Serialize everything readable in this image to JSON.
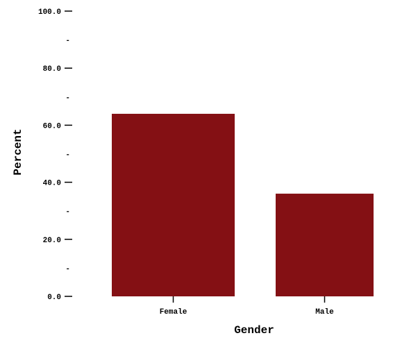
{
  "colors": {
    "bar": "#841014",
    "text": "#000000",
    "background": "#ffffff"
  },
  "chart_data": {
    "type": "bar",
    "title": "",
    "xlabel": "Gender",
    "ylabel": "Percent",
    "categories": [
      "Female",
      "Male"
    ],
    "values": [
      64,
      36
    ],
    "ylim": [
      0,
      100
    ],
    "yticks": [
      0,
      20,
      40,
      60,
      80,
      100
    ],
    "ytick_labels": [
      "0.0",
      "20.0",
      "40.0",
      "60.0",
      "80.0",
      "100.0"
    ],
    "minor_tick_labels": [
      "-",
      "-",
      "-",
      "-",
      "-"
    ],
    "grid": false,
    "legend": "none"
  }
}
